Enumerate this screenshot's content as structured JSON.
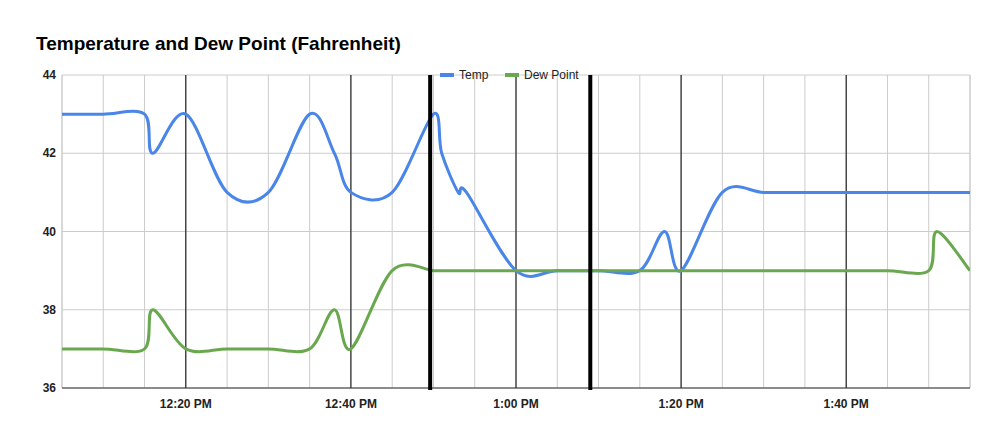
{
  "chart_data": {
    "type": "line",
    "title": "Temperature and Dew Point (Fahrenheit)",
    "x": [
      5,
      10,
      15,
      16,
      20,
      25,
      30,
      35,
      38,
      40,
      45,
      50,
      51,
      53,
      54,
      60,
      65,
      70,
      75,
      78,
      80,
      85,
      90,
      95,
      100,
      105,
      110,
      111,
      115
    ],
    "series": [
      {
        "name": "Temp",
        "color": "#4a86e8",
        "values": [
          43,
          43,
          43,
          42,
          43,
          41,
          41,
          43,
          42,
          41,
          41,
          43,
          42,
          41,
          41,
          39,
          39,
          39,
          39,
          40,
          39,
          41,
          41,
          41,
          41,
          41,
          41,
          41,
          41
        ]
      },
      {
        "name": "Dew Point",
        "color": "#6aa84f",
        "values": [
          37,
          37,
          37,
          38,
          37,
          37,
          37,
          37,
          38,
          37,
          39,
          39,
          39,
          39,
          39,
          39,
          39,
          39,
          39,
          39,
          39,
          39,
          39,
          39,
          39,
          39,
          39,
          40,
          39
        ]
      }
    ],
    "xlim": [
      5,
      115
    ],
    "xticks": [
      {
        "value": 20,
        "label": "12:20 PM"
      },
      {
        "value": 40,
        "label": "12:40 PM"
      },
      {
        "value": 60,
        "label": "1:00 PM"
      },
      {
        "value": 80,
        "label": "1:20 PM"
      },
      {
        "value": 100,
        "label": "1:40 PM"
      }
    ],
    "ylim": [
      36,
      44
    ],
    "yticks": [
      36,
      38,
      40,
      42,
      44
    ],
    "vertical_lines": [
      49.6,
      69
    ],
    "grid": true,
    "legend": "top"
  }
}
